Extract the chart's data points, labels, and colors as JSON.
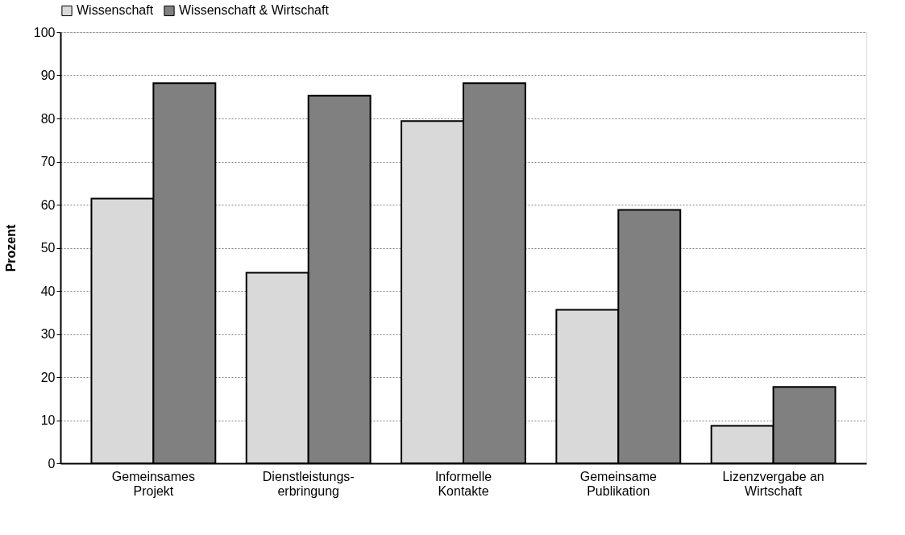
{
  "chart_data": {
    "type": "bar",
    "ylabel": "Prozent",
    "categories": [
      "Gemeinsames\nProjekt",
      "Dienstleistungs-\nerbringung",
      "Informelle\nKontakte",
      "Gemeinsame\nPublikation",
      "Lizenzvergabe an\nWirtschaft"
    ],
    "series": [
      {
        "name": "Wissenschaft",
        "color": "#d9d9d9",
        "values": [
          61.4,
          44.2,
          79.4,
          35.6,
          8.7
        ]
      },
      {
        "name": "Wissenschaft & Wirtschaft",
        "color": "#808080",
        "values": [
          88.2,
          85.3,
          88.2,
          58.8,
          17.7
        ]
      }
    ],
    "ylim": [
      0,
      100
    ],
    "yticks": [
      0,
      10,
      20,
      30,
      40,
      50,
      60,
      70,
      80,
      90,
      100
    ],
    "grid": "y",
    "legend": "top"
  }
}
